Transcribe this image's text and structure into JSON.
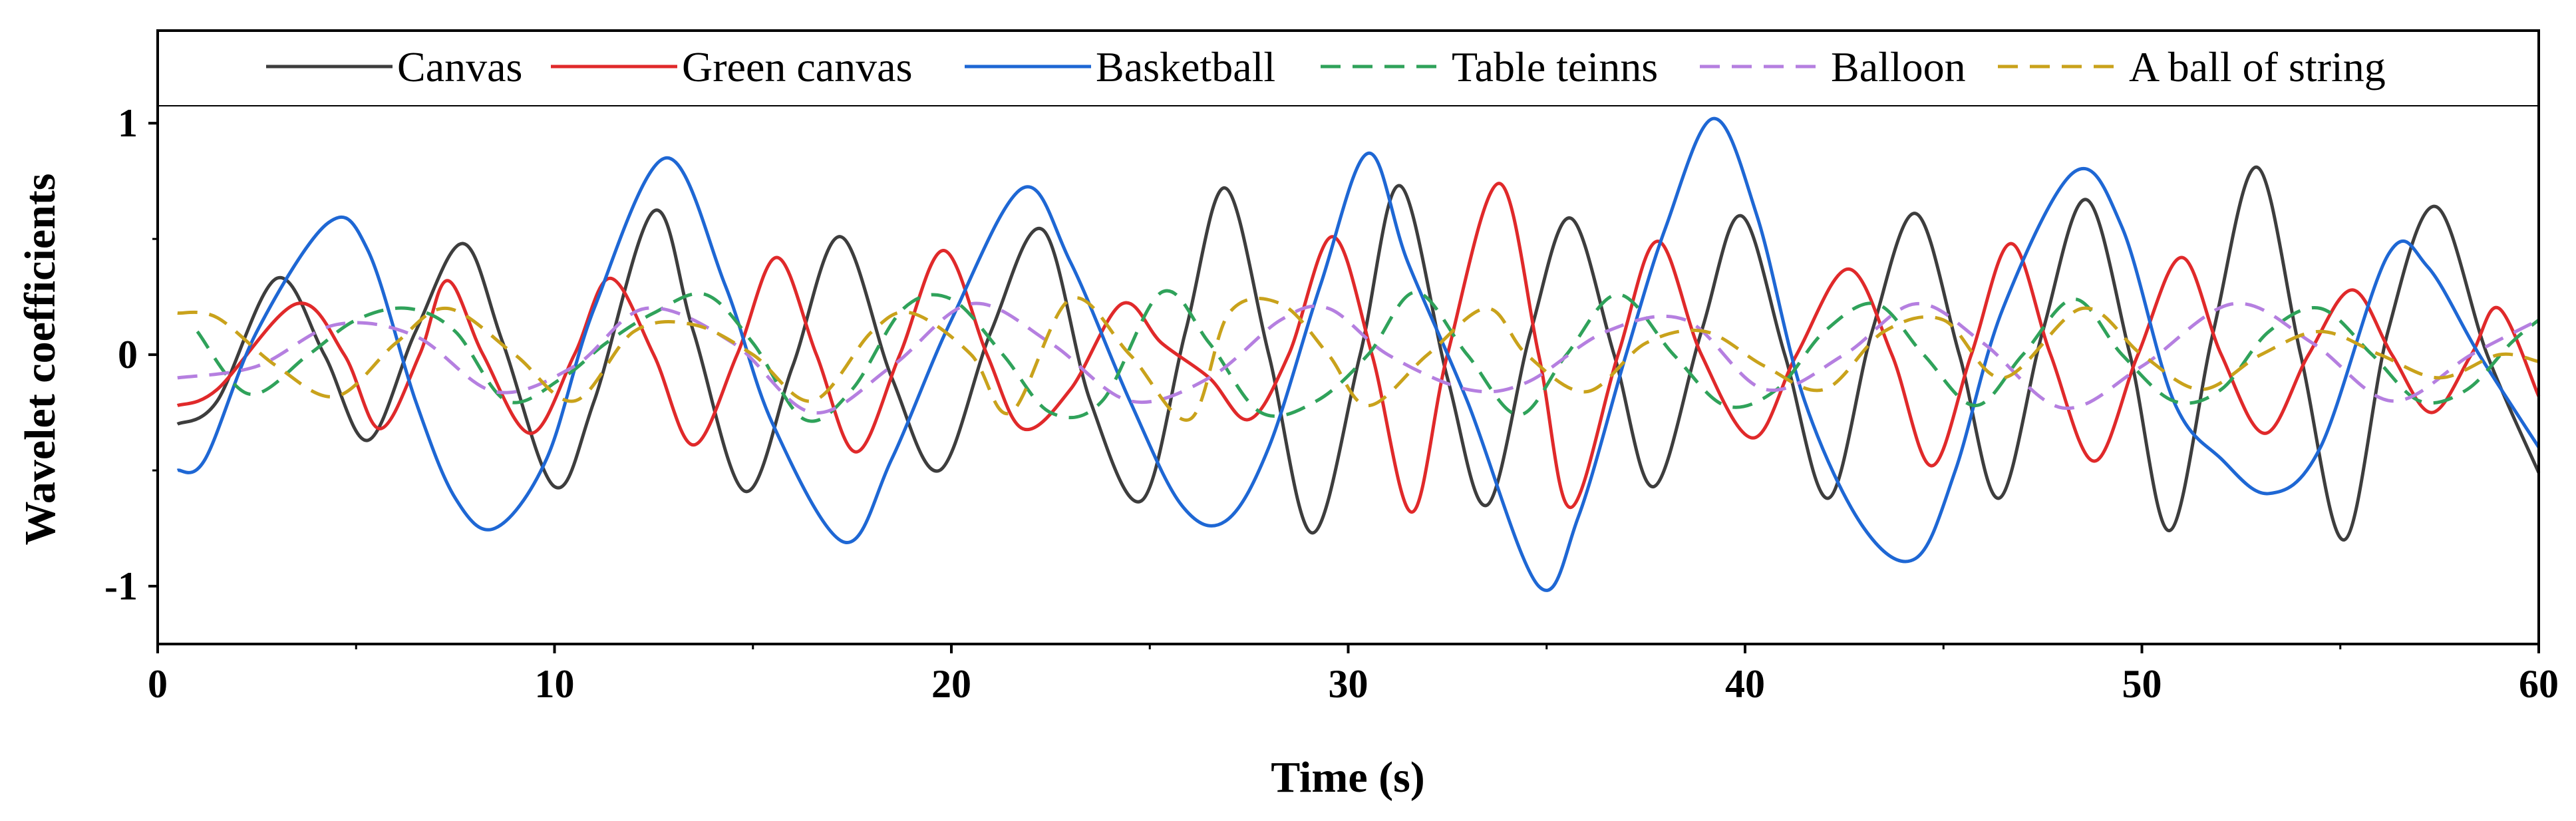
{
  "chart_data": {
    "type": "line",
    "xlabel": "Time (s)",
    "ylabel": "Wavelet coefficients",
    "xlim": [
      0,
      60
    ],
    "ylim": [
      -1.25,
      1.4
    ],
    "x_ticks": [
      0,
      10,
      20,
      30,
      40,
      50,
      60
    ],
    "x_tick_labels": [
      "0",
      "10",
      "20",
      "30",
      "40",
      "50",
      "60"
    ],
    "y_ticks": [
      -1,
      0,
      1
    ],
    "y_tick_labels": [
      "-1",
      "0",
      "1"
    ],
    "grid": false,
    "legend_position": "top",
    "series": [
      {
        "name": "Canvas",
        "color": "#3d3d3d",
        "dash": "solid",
        "points": [
          [
            0.5,
            -0.3
          ],
          [
            1.5,
            -0.2
          ],
          [
            3,
            0.33
          ],
          [
            4.2,
            0.0
          ],
          [
            5.3,
            -0.37
          ],
          [
            6.5,
            0.1
          ],
          [
            7.7,
            0.48
          ],
          [
            8.7,
            0.05
          ],
          [
            10,
            -0.57
          ],
          [
            11,
            -0.2
          ],
          [
            12.5,
            0.62
          ],
          [
            13.5,
            0.1
          ],
          [
            14.8,
            -0.59
          ],
          [
            16,
            -0.05
          ],
          [
            17.2,
            0.51
          ],
          [
            18.5,
            -0.1
          ],
          [
            19.7,
            -0.5
          ],
          [
            21,
            0.1
          ],
          [
            22.3,
            0.54
          ],
          [
            23.5,
            -0.2
          ],
          [
            24.8,
            -0.63
          ],
          [
            25.9,
            0.1
          ],
          [
            26.9,
            0.72
          ],
          [
            28,
            0.0
          ],
          [
            29.1,
            -0.77
          ],
          [
            30.3,
            0.0
          ],
          [
            31.3,
            0.73
          ],
          [
            32.5,
            -0.1
          ],
          [
            33.5,
            -0.65
          ],
          [
            34.6,
            0.1
          ],
          [
            35.6,
            0.59
          ],
          [
            36.7,
            0.0
          ],
          [
            37.7,
            -0.57
          ],
          [
            38.9,
            0.1
          ],
          [
            39.9,
            0.6
          ],
          [
            41,
            0.0
          ],
          [
            42.1,
            -0.62
          ],
          [
            43.2,
            0.1
          ],
          [
            44.3,
            0.61
          ],
          [
            45.4,
            0.0
          ],
          [
            46.4,
            -0.62
          ],
          [
            47.5,
            0.1
          ],
          [
            48.6,
            0.67
          ],
          [
            49.7,
            0.0
          ],
          [
            50.7,
            -0.76
          ],
          [
            51.8,
            0.1
          ],
          [
            52.9,
            0.81
          ],
          [
            54,
            0.0
          ],
          [
            55.1,
            -0.8
          ],
          [
            56.2,
            0.1
          ],
          [
            57.4,
            0.64
          ],
          [
            58.7,
            0.0
          ],
          [
            60,
            -0.51
          ]
        ]
      },
      {
        "name": "Green canvas",
        "color": "#e0292a",
        "dash": "solid",
        "points": [
          [
            0.5,
            -0.22
          ],
          [
            1.5,
            -0.15
          ],
          [
            3.5,
            0.22
          ],
          [
            4.7,
            0.0
          ],
          [
            5.6,
            -0.32
          ],
          [
            6.6,
            0.0
          ],
          [
            7.3,
            0.32
          ],
          [
            8.2,
            0.0
          ],
          [
            9.4,
            -0.34
          ],
          [
            10.5,
            0.0
          ],
          [
            11.4,
            0.33
          ],
          [
            12.5,
            0.0
          ],
          [
            13.5,
            -0.39
          ],
          [
            14.6,
            0.0
          ],
          [
            15.6,
            0.42
          ],
          [
            16.6,
            0.0
          ],
          [
            17.6,
            -0.42
          ],
          [
            18.7,
            0.0
          ],
          [
            19.8,
            0.45
          ],
          [
            20.9,
            0.0
          ],
          [
            21.8,
            -0.32
          ],
          [
            23,
            -0.15
          ],
          [
            24.3,
            0.22
          ],
          [
            25.3,
            0.05
          ],
          [
            26.5,
            -0.1
          ],
          [
            27.5,
            -0.28
          ],
          [
            28.5,
            0.0
          ],
          [
            29.6,
            0.51
          ],
          [
            30.6,
            0.0
          ],
          [
            31.6,
            -0.68
          ],
          [
            32.5,
            0.0
          ],
          [
            33.8,
            0.74
          ],
          [
            34.8,
            0.0
          ],
          [
            35.6,
            -0.66
          ],
          [
            36.8,
            0.0
          ],
          [
            37.8,
            0.49
          ],
          [
            38.9,
            0.0
          ],
          [
            40.2,
            -0.36
          ],
          [
            41.3,
            0.0
          ],
          [
            42.6,
            0.37
          ],
          [
            43.7,
            0.0
          ],
          [
            44.7,
            -0.48
          ],
          [
            45.7,
            0.0
          ],
          [
            46.7,
            0.48
          ],
          [
            47.7,
            0.0
          ],
          [
            48.8,
            -0.46
          ],
          [
            49.9,
            0.0
          ],
          [
            51,
            0.42
          ],
          [
            52,
            0.0
          ],
          [
            53.1,
            -0.34
          ],
          [
            54.2,
            0.0
          ],
          [
            55.3,
            0.28
          ],
          [
            56.3,
            0.0
          ],
          [
            57.3,
            -0.25
          ],
          [
            58.3,
            0.0
          ],
          [
            59,
            0.2
          ],
          [
            60,
            -0.18
          ]
        ]
      },
      {
        "name": "Basketball",
        "color": "#1e67d4",
        "dash": "solid",
        "points": [
          [
            0.5,
            -0.5
          ],
          [
            1.2,
            -0.45
          ],
          [
            2.5,
            0.1
          ],
          [
            4.3,
            0.57
          ],
          [
            5.3,
            0.45
          ],
          [
            6.5,
            -0.2
          ],
          [
            7.5,
            -0.62
          ],
          [
            8.5,
            -0.75
          ],
          [
            9.8,
            -0.45
          ],
          [
            11,
            0.2
          ],
          [
            12.8,
            0.85
          ],
          [
            14.3,
            0.3
          ],
          [
            15.5,
            -0.3
          ],
          [
            17.3,
            -0.81
          ],
          [
            18.5,
            -0.45
          ],
          [
            20,
            0.15
          ],
          [
            21.8,
            0.72
          ],
          [
            23,
            0.4
          ],
          [
            24.5,
            -0.2
          ],
          [
            25.8,
            -0.65
          ],
          [
            26.9,
            -0.72
          ],
          [
            28,
            -0.4
          ],
          [
            29.3,
            0.3
          ],
          [
            30.5,
            0.87
          ],
          [
            31.5,
            0.4
          ],
          [
            33,
            -0.2
          ],
          [
            34.8,
            -1.0
          ],
          [
            35.8,
            -0.7
          ],
          [
            37,
            0.0
          ],
          [
            38,
            0.55
          ],
          [
            39.2,
            1.02
          ],
          [
            40.3,
            0.6
          ],
          [
            41.5,
            -0.2
          ],
          [
            43,
            -0.75
          ],
          [
            44.3,
            -0.88
          ],
          [
            45.3,
            -0.5
          ],
          [
            46.5,
            0.2
          ],
          [
            48.3,
            0.79
          ],
          [
            49.5,
            0.55
          ],
          [
            50.8,
            -0.2
          ],
          [
            52,
            -0.45
          ],
          [
            53.2,
            -0.6
          ],
          [
            54.5,
            -0.4
          ],
          [
            56.2,
            0.43
          ],
          [
            57.2,
            0.38
          ],
          [
            58.5,
            0.0
          ],
          [
            60,
            -0.4
          ]
        ]
      },
      {
        "name": "Table teinns",
        "color": "#2fa25a",
        "dash": "dashed",
        "points": [
          [
            1,
            0.1
          ],
          [
            2.3,
            -0.17
          ],
          [
            3.8,
            0.0
          ],
          [
            5,
            0.15
          ],
          [
            6.3,
            0.2
          ],
          [
            7.5,
            0.1
          ],
          [
            8.8,
            -0.2
          ],
          [
            10.2,
            -0.1
          ],
          [
            11.3,
            0.05
          ],
          [
            12.5,
            0.18
          ],
          [
            13.8,
            0.26
          ],
          [
            15,
            0.05
          ],
          [
            16.3,
            -0.28
          ],
          [
            17.5,
            -0.15
          ],
          [
            18.8,
            0.2
          ],
          [
            20,
            0.24
          ],
          [
            21.3,
            0.0
          ],
          [
            22.5,
            -0.25
          ],
          [
            23.8,
            -0.2
          ],
          [
            25.3,
            0.27
          ],
          [
            26.5,
            0.05
          ],
          [
            27.8,
            -0.25
          ],
          [
            29.2,
            -0.2
          ],
          [
            30.5,
            0.0
          ],
          [
            31.7,
            0.27
          ],
          [
            33,
            0.0
          ],
          [
            34.3,
            -0.26
          ],
          [
            35.5,
            0.0
          ],
          [
            36.8,
            0.26
          ],
          [
            38.2,
            0.0
          ],
          [
            39.5,
            -0.22
          ],
          [
            40.8,
            -0.15
          ],
          [
            42,
            0.1
          ],
          [
            43.3,
            0.22
          ],
          [
            44.5,
            0.0
          ],
          [
            45.8,
            -0.22
          ],
          [
            47,
            0.0
          ],
          [
            48.3,
            0.24
          ],
          [
            49.5,
            0.0
          ],
          [
            50.8,
            -0.2
          ],
          [
            52,
            -0.15
          ],
          [
            53.2,
            0.1
          ],
          [
            54.5,
            0.2
          ],
          [
            55.8,
            0.0
          ],
          [
            57,
            -0.2
          ],
          [
            58.2,
            -0.15
          ],
          [
            59.3,
            0.05
          ],
          [
            60,
            0.15
          ]
        ]
      },
      {
        "name": "Balloon",
        "color": "#b57fe0",
        "dash": "dashed",
        "points": [
          [
            0.5,
            -0.1
          ],
          [
            2.5,
            -0.05
          ],
          [
            4.5,
            0.13
          ],
          [
            6.5,
            0.08
          ],
          [
            8.5,
            -0.16
          ],
          [
            10.5,
            -0.05
          ],
          [
            12.3,
            0.2
          ],
          [
            14.5,
            0.05
          ],
          [
            16.5,
            -0.25
          ],
          [
            18.5,
            -0.05
          ],
          [
            20.5,
            0.22
          ],
          [
            22.5,
            0.05
          ],
          [
            24.5,
            -0.2
          ],
          [
            26.5,
            -0.1
          ],
          [
            28.3,
            0.15
          ],
          [
            29.5,
            0.2
          ],
          [
            31,
            0.0
          ],
          [
            33,
            -0.15
          ],
          [
            34.5,
            -0.12
          ],
          [
            36.5,
            0.1
          ],
          [
            38.5,
            0.15
          ],
          [
            40.5,
            -0.15
          ],
          [
            42.5,
            0.0
          ],
          [
            44.3,
            0.22
          ],
          [
            46,
            0.05
          ],
          [
            48,
            -0.23
          ],
          [
            50,
            -0.05
          ],
          [
            52.3,
            0.22
          ],
          [
            54.3,
            0.05
          ],
          [
            56.3,
            -0.2
          ],
          [
            58.3,
            0.0
          ],
          [
            60,
            0.15
          ]
        ]
      },
      {
        "name": "A ball of string",
        "color": "#c9a21b",
        "dash": "dashed",
        "points": [
          [
            0.5,
            0.18
          ],
          [
            1.5,
            0.16
          ],
          [
            3,
            -0.05
          ],
          [
            4.5,
            -0.18
          ],
          [
            6,
            0.05
          ],
          [
            7.3,
            0.2
          ],
          [
            9,
            0.0
          ],
          [
            10.5,
            -0.2
          ],
          [
            12,
            0.1
          ],
          [
            13.5,
            0.13
          ],
          [
            15,
            0.0
          ],
          [
            16.5,
            -0.2
          ],
          [
            18,
            0.1
          ],
          [
            19,
            0.18
          ],
          [
            20.5,
            0.0
          ],
          [
            21.5,
            -0.25
          ],
          [
            23,
            0.24
          ],
          [
            24.5,
            0.0
          ],
          [
            26,
            -0.28
          ],
          [
            27,
            0.18
          ],
          [
            28.3,
            0.22
          ],
          [
            29.5,
            0.0
          ],
          [
            30.5,
            -0.22
          ],
          [
            32,
            0.0
          ],
          [
            33.5,
            0.2
          ],
          [
            34.5,
            0.0
          ],
          [
            36,
            -0.16
          ],
          [
            37.5,
            0.05
          ],
          [
            39,
            0.1
          ],
          [
            40.5,
            -0.05
          ],
          [
            42,
            -0.15
          ],
          [
            43.5,
            0.1
          ],
          [
            45,
            0.15
          ],
          [
            46.5,
            -0.1
          ],
          [
            48.5,
            0.2
          ],
          [
            50,
            0.0
          ],
          [
            51.5,
            -0.15
          ],
          [
            53,
            0.0
          ],
          [
            54.5,
            0.1
          ],
          [
            56,
            0.0
          ],
          [
            57.5,
            -0.1
          ],
          [
            59,
            0.0
          ],
          [
            60,
            -0.03
          ]
        ]
      }
    ]
  }
}
